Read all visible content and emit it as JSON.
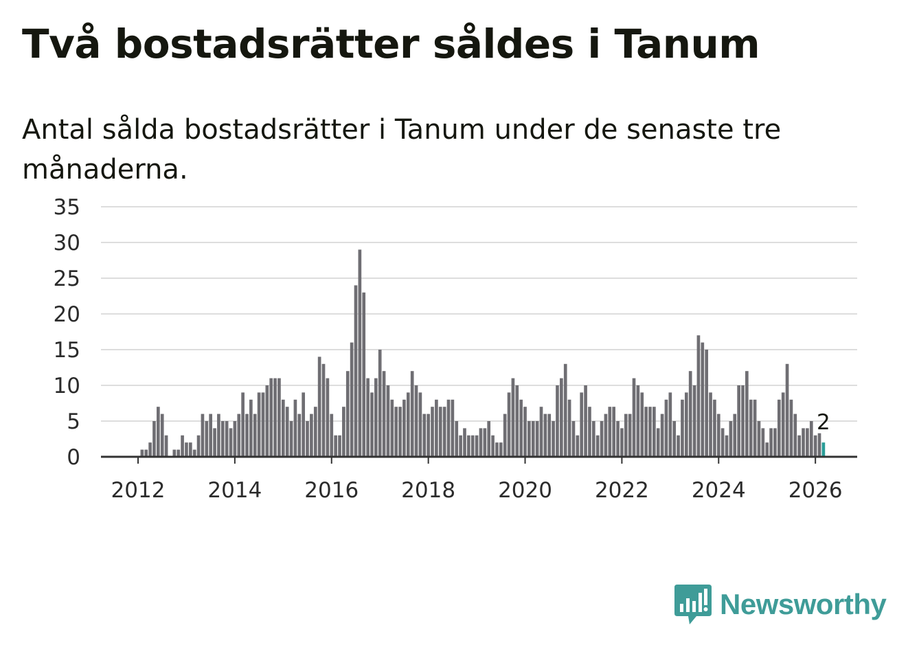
{
  "title": "Två bostadsrätter såldes i Tanum",
  "subtitle": "Antal sålda bostadsrätter i Tanum under de senaste tre månaderna.",
  "brand": {
    "name": "Newsworthy",
    "icon": "newsworthy-logo-icon",
    "color": "#3f9c98"
  },
  "colors": {
    "bar": "#6f6e73",
    "highlight": "#2a9d98",
    "grid": "#dddddd",
    "axis": "#333333"
  },
  "chart_data": {
    "type": "bar",
    "xlabel": "",
    "ylabel": "",
    "ylim": [
      0,
      35
    ],
    "yticks": [
      0,
      5,
      10,
      15,
      20,
      25,
      30,
      35
    ],
    "xticks": [
      "2012",
      "2014",
      "2016",
      "2018",
      "2020",
      "2022",
      "2024",
      "2026"
    ],
    "grid": true,
    "start_month": "2011-06",
    "values": [
      0,
      0,
      0,
      0,
      0,
      0,
      0,
      0,
      1,
      1,
      2,
      5,
      7,
      6,
      3,
      0,
      1,
      1,
      3,
      2,
      2,
      1,
      3,
      6,
      5,
      6,
      4,
      6,
      5,
      5,
      4,
      5,
      6,
      9,
      6,
      8,
      6,
      9,
      9,
      10,
      11,
      11,
      11,
      8,
      7,
      5,
      8,
      6,
      9,
      5,
      6,
      7,
      14,
      13,
      11,
      6,
      3,
      3,
      7,
      12,
      16,
      24,
      29,
      23,
      11,
      9,
      11,
      15,
      12,
      10,
      8,
      7,
      7,
      8,
      9,
      12,
      10,
      9,
      6,
      6,
      7,
      8,
      7,
      7,
      8,
      8,
      5,
      3,
      4,
      3,
      3,
      3,
      4,
      4,
      5,
      3,
      2,
      2,
      6,
      9,
      11,
      10,
      8,
      7,
      5,
      5,
      5,
      7,
      6,
      6,
      5,
      10,
      11,
      13,
      8,
      5,
      3,
      9,
      10,
      7,
      5,
      3,
      5,
      6,
      7,
      7,
      5,
      4,
      6,
      6,
      11,
      10,
      9,
      7,
      7,
      7,
      4,
      6,
      8,
      9,
      5,
      3,
      8,
      9,
      12,
      10,
      17,
      16,
      15,
      9,
      8,
      6,
      4,
      3,
      5,
      6,
      10,
      10,
      12,
      8,
      8,
      5,
      4,
      2,
      4,
      4,
      8,
      9,
      13,
      8,
      6,
      3,
      4,
      4,
      5,
      3,
      3.3,
      2
    ],
    "highlight_last": true,
    "annotation": {
      "index": "last",
      "text": "2"
    }
  }
}
